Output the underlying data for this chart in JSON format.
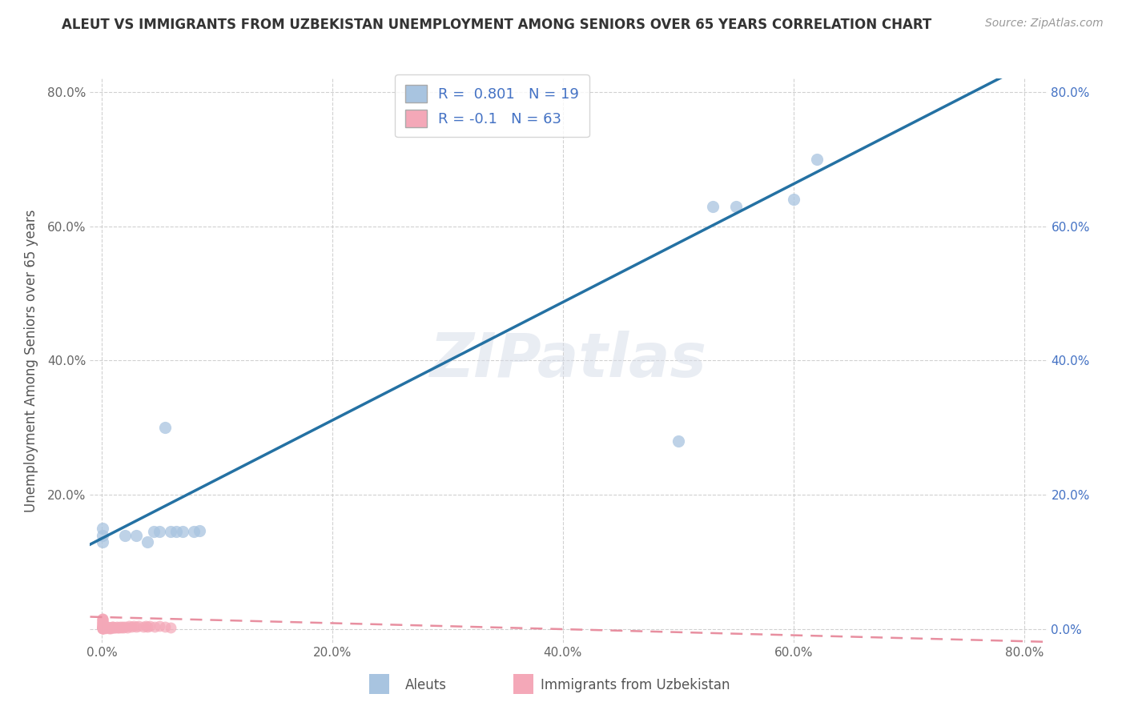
{
  "title": "ALEUT VS IMMIGRANTS FROM UZBEKISTAN UNEMPLOYMENT AMONG SENIORS OVER 65 YEARS CORRELATION CHART",
  "source": "Source: ZipAtlas.com",
  "ylabel": "Unemployment Among Seniors over 65 years",
  "aleut_color": "#a8c4e0",
  "aleut_color_line": "#2471a3",
  "uzbek_color": "#f4a8b8",
  "uzbek_color_line": "#e88fa0",
  "R_aleut": 0.801,
  "N_aleut": 19,
  "R_uzbek": -0.1,
  "N_uzbek": 63,
  "aleut_x": [
    0.001,
    0.001,
    0.001,
    0.02,
    0.03,
    0.04,
    0.045,
    0.05,
    0.055,
    0.06,
    0.065,
    0.07,
    0.08,
    0.085,
    0.5,
    0.53,
    0.55,
    0.6,
    0.62
  ],
  "aleut_y": [
    0.15,
    0.14,
    0.13,
    0.14,
    0.14,
    0.13,
    0.145,
    0.145,
    0.3,
    0.145,
    0.145,
    0.146,
    0.146,
    0.147,
    0.28,
    0.63,
    0.63,
    0.64,
    0.7
  ],
  "uzbek_x": [
    0.001,
    0.001,
    0.001,
    0.001,
    0.001,
    0.001,
    0.001,
    0.001,
    0.001,
    0.001,
    0.001,
    0.001,
    0.001,
    0.001,
    0.001,
    0.001,
    0.001,
    0.001,
    0.001,
    0.001,
    0.001,
    0.001,
    0.001,
    0.001,
    0.001,
    0.003,
    0.003,
    0.003,
    0.005,
    0.005,
    0.006,
    0.006,
    0.007,
    0.008,
    0.008,
    0.009,
    0.009,
    0.01,
    0.01,
    0.011,
    0.012,
    0.013,
    0.014,
    0.015,
    0.016,
    0.017,
    0.018,
    0.019,
    0.02,
    0.022,
    0.024,
    0.026,
    0.028,
    0.03,
    0.032,
    0.036,
    0.038,
    0.04,
    0.042,
    0.046,
    0.05,
    0.055,
    0.06
  ],
  "uzbek_y": [
    0.001,
    0.001,
    0.001,
    0.001,
    0.001,
    0.002,
    0.002,
    0.003,
    0.003,
    0.004,
    0.004,
    0.005,
    0.005,
    0.006,
    0.006,
    0.007,
    0.008,
    0.009,
    0.01,
    0.011,
    0.012,
    0.013,
    0.014,
    0.015,
    0.016,
    0.001,
    0.002,
    0.003,
    0.002,
    0.004,
    0.001,
    0.003,
    0.002,
    0.001,
    0.003,
    0.002,
    0.004,
    0.002,
    0.004,
    0.003,
    0.003,
    0.004,
    0.003,
    0.003,
    0.004,
    0.003,
    0.004,
    0.003,
    0.004,
    0.003,
    0.005,
    0.004,
    0.005,
    0.004,
    0.005,
    0.004,
    0.005,
    0.004,
    0.005,
    0.004,
    0.005,
    0.004,
    0.003
  ],
  "xlim": [
    -0.01,
    0.82
  ],
  "ylim": [
    -0.02,
    0.82
  ],
  "xticks": [
    0.0,
    0.2,
    0.4,
    0.6,
    0.8
  ],
  "yticks": [
    0.0,
    0.2,
    0.4,
    0.6,
    0.8
  ],
  "xticklabels": [
    "0.0%",
    "20.0%",
    "40.0%",
    "60.0%",
    "80.0%"
  ],
  "yticklabels": [
    "",
    "20.0%",
    "40.0%",
    "60.0%",
    "80.0%"
  ],
  "right_yticklabels": [
    "0.0%",
    "20.0%",
    "40.0%",
    "60.0%",
    "80.0%"
  ],
  "watermark": "ZIPatlas",
  "background_color": "#ffffff",
  "grid_color": "#cccccc",
  "line_intercept_aleut": 0.135,
  "line_slope_aleut": 0.88,
  "line_intercept_uzbek": 0.018,
  "line_slope_uzbek": -0.045
}
